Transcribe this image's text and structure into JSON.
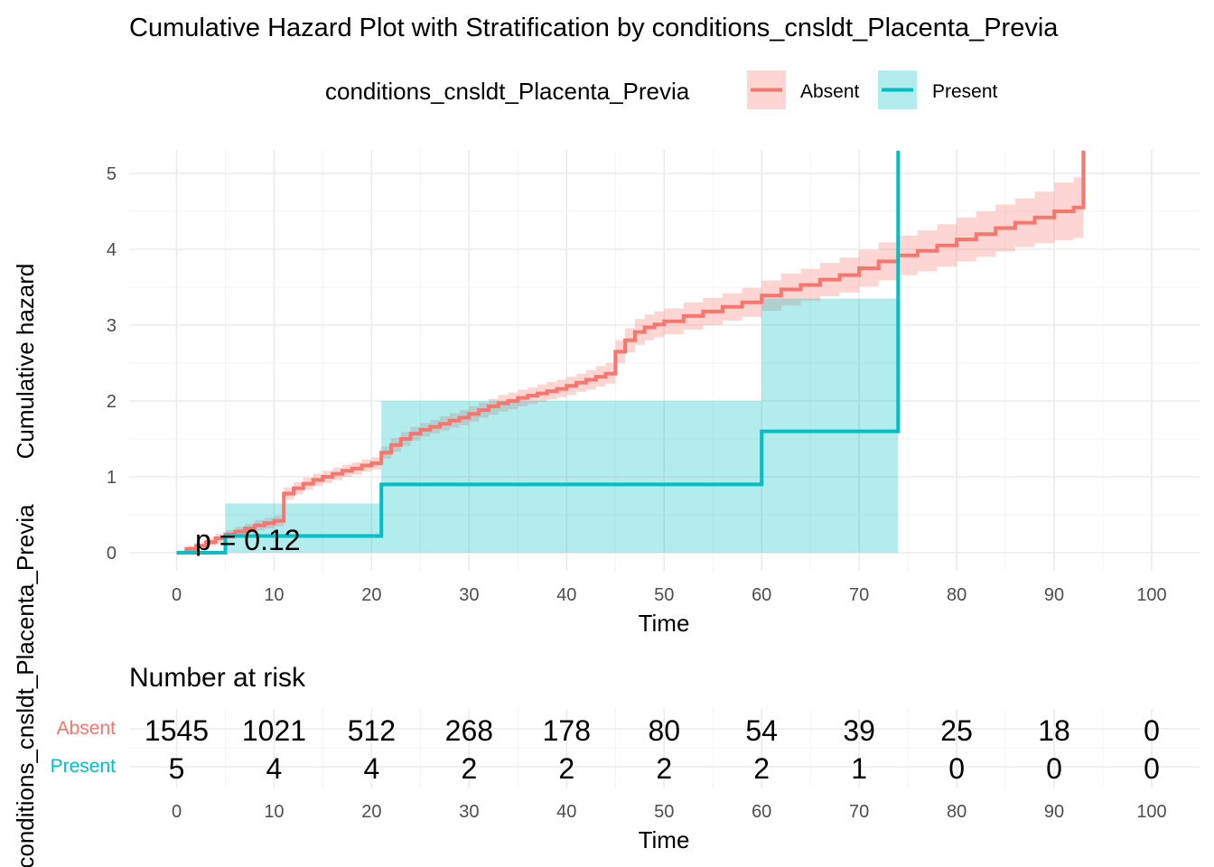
{
  "chart_data": {
    "type": "line",
    "title": "Cumulative Hazard Plot with Stratification by conditions_cnsldt_Placenta_Previa",
    "legend": {
      "title": "conditions_cnsldt_Placenta_Previa",
      "position": "top",
      "entries": [
        "Absent",
        "Present"
      ]
    },
    "xlabel": "Time",
    "ylabel": "Cumulative hazard",
    "xlim": [
      0,
      100
    ],
    "ylim": [
      0,
      5
    ],
    "x_ticks": [
      "0",
      "10",
      "20",
      "30",
      "40",
      "50",
      "60",
      "70",
      "80",
      "90",
      "100"
    ],
    "y_ticks": [
      "0",
      "1",
      "2",
      "3",
      "4",
      "5"
    ],
    "grid": true,
    "annotation": "p = 0.12",
    "colors": {
      "Absent": "#F8766D",
      "Present": "#00BFC4"
    },
    "series": [
      {
        "name": "Absent",
        "step": true,
        "x": [
          0,
          1,
          2,
          3,
          4,
          5,
          6,
          7,
          8,
          9,
          10,
          11,
          12,
          13,
          14,
          15,
          16,
          17,
          18,
          19,
          20,
          21,
          22,
          23,
          24,
          25,
          26,
          27,
          28,
          29,
          30,
          31,
          32,
          33,
          34,
          35,
          36,
          37,
          38,
          39,
          40,
          41,
          42,
          43,
          44,
          45,
          46,
          47,
          48,
          49,
          50,
          52,
          54,
          56,
          58,
          60,
          62,
          64,
          66,
          68,
          70,
          72,
          74,
          76,
          78,
          80,
          82,
          84,
          86,
          88,
          90,
          92,
          93
        ],
        "y": [
          0.0,
          0.05,
          0.09,
          0.14,
          0.19,
          0.24,
          0.28,
          0.32,
          0.36,
          0.39,
          0.42,
          0.78,
          0.85,
          0.91,
          0.96,
          1.0,
          1.04,
          1.08,
          1.11,
          1.15,
          1.18,
          1.32,
          1.42,
          1.5,
          1.57,
          1.62,
          1.66,
          1.7,
          1.74,
          1.78,
          1.83,
          1.88,
          1.93,
          1.97,
          2.0,
          2.04,
          2.07,
          2.1,
          2.13,
          2.16,
          2.2,
          2.24,
          2.28,
          2.32,
          2.36,
          2.65,
          2.8,
          2.91,
          2.97,
          3.01,
          3.05,
          3.12,
          3.18,
          3.24,
          3.3,
          3.39,
          3.47,
          3.53,
          3.6,
          3.66,
          3.75,
          3.84,
          3.92,
          3.98,
          4.05,
          4.13,
          4.2,
          4.28,
          4.35,
          4.42,
          4.5,
          4.55,
          5.3
        ],
        "ci_lower": [
          0.0,
          0.02,
          0.05,
          0.09,
          0.13,
          0.18,
          0.22,
          0.26,
          0.29,
          0.32,
          0.35,
          0.7,
          0.77,
          0.83,
          0.88,
          0.92,
          0.96,
          1.0,
          1.03,
          1.07,
          1.1,
          1.24,
          1.33,
          1.41,
          1.48,
          1.53,
          1.57,
          1.61,
          1.65,
          1.68,
          1.73,
          1.78,
          1.82,
          1.86,
          1.89,
          1.93,
          1.96,
          1.99,
          2.02,
          2.05,
          2.08,
          2.12,
          2.15,
          2.19,
          2.23,
          2.5,
          2.64,
          2.74,
          2.8,
          2.84,
          2.88,
          2.94,
          3.0,
          3.06,
          3.11,
          3.19,
          3.26,
          3.32,
          3.38,
          3.43,
          3.51,
          3.59,
          3.66,
          3.71,
          3.77,
          3.84,
          3.9,
          3.97,
          4.03,
          4.08,
          4.12,
          4.15,
          4.15
        ],
        "ci_upper": [
          0.0,
          0.09,
          0.14,
          0.2,
          0.25,
          0.3,
          0.34,
          0.38,
          0.43,
          0.46,
          0.49,
          0.86,
          0.93,
          0.99,
          1.04,
          1.08,
          1.12,
          1.16,
          1.19,
          1.23,
          1.26,
          1.4,
          1.51,
          1.59,
          1.66,
          1.71,
          1.75,
          1.8,
          1.84,
          1.88,
          1.93,
          1.98,
          2.03,
          2.08,
          2.11,
          2.15,
          2.18,
          2.22,
          2.25,
          2.28,
          2.32,
          2.36,
          2.41,
          2.46,
          2.5,
          2.8,
          2.96,
          3.08,
          3.14,
          3.18,
          3.22,
          3.3,
          3.36,
          3.42,
          3.49,
          3.59,
          3.68,
          3.74,
          3.82,
          3.89,
          3.99,
          4.09,
          4.18,
          4.25,
          4.33,
          4.42,
          4.5,
          4.59,
          4.67,
          4.76,
          4.88,
          4.95,
          4.95
        ]
      },
      {
        "name": "Present",
        "step": true,
        "x": [
          0,
          5,
          21,
          60,
          74
        ],
        "y": [
          0.0,
          0.22,
          0.9,
          1.6,
          5.3
        ],
        "ci_lower": [
          0.0,
          0.0,
          0.0,
          0.0,
          0.0
        ],
        "ci_upper": [
          0.0,
          0.65,
          2.0,
          3.35,
          3.35
        ]
      }
    ],
    "risk_table": {
      "title": "Number at risk",
      "times": [
        "0",
        "10",
        "20",
        "30",
        "40",
        "50",
        "60",
        "70",
        "80",
        "90",
        "100"
      ],
      "rows": [
        {
          "name": "Absent",
          "counts": [
            "1545",
            "1021",
            "512",
            "268",
            "178",
            "80",
            "54",
            "39",
            "25",
            "18",
            "0"
          ]
        },
        {
          "name": "Present",
          "counts": [
            "5",
            "4",
            "4",
            "2",
            "2",
            "2",
            "2",
            "1",
            "0",
            "0",
            "0"
          ]
        }
      ],
      "xlabel": "Time",
      "ylabel": "conditions_cnsldt_Placenta_Previa"
    }
  }
}
